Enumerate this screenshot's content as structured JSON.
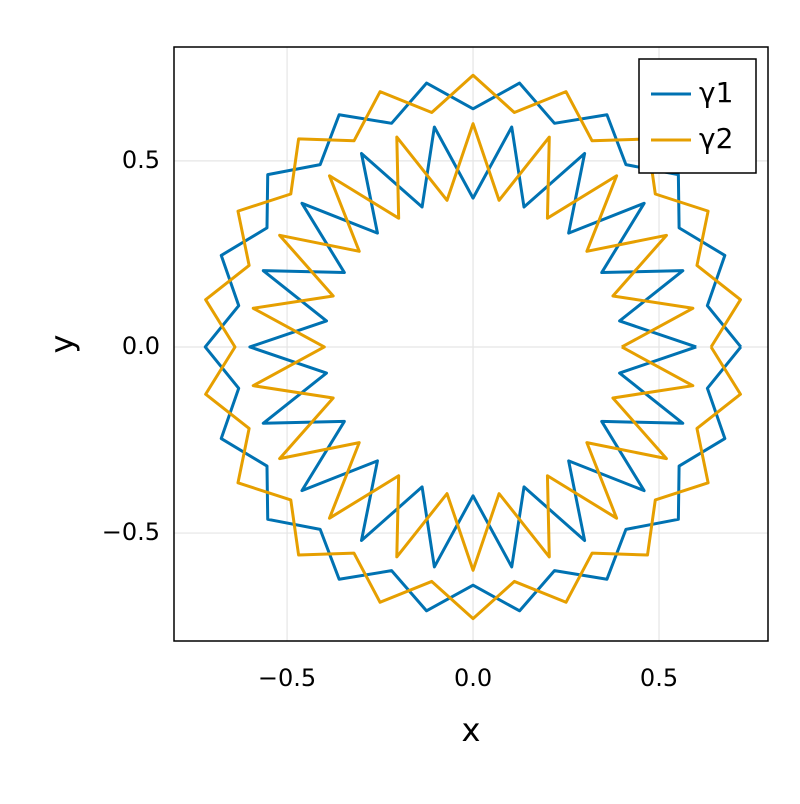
{
  "chart_data": {
    "type": "line",
    "x_label": "x",
    "y_label": "y",
    "xlim": [
      -0.804,
      0.793
    ],
    "ylim": [
      -0.79,
      0.806
    ],
    "xticks": [
      {
        "value": -0.5,
        "label": "−0.5"
      },
      {
        "value": 0,
        "label": "0.0"
      },
      0.5
    ],
    "yticks": [
      {
        "value": -0.5,
        "label": "−0.5"
      },
      {
        "value": 0,
        "label": "0.0"
      },
      0.5
    ],
    "grid": true,
    "legend": "top-right",
    "series": [
      {
        "name": "γ1",
        "color": "#0072b2",
        "x": [
          0.72,
          0.63,
          0.677,
          0.554,
          0.552,
          0.411,
          0.36,
          0.219,
          0.125,
          0,
          -0.125,
          -0.219,
          -0.36,
          -0.411,
          -0.552,
          -0.554,
          -0.677,
          -0.63,
          -0.72,
          -0.63,
          -0.677,
          -0.554,
          -0.552,
          -0.411,
          -0.36,
          -0.219,
          -0.125,
          0,
          0.125,
          0.219,
          0.36,
          0.411,
          0.552,
          0.554,
          0.677,
          0.63,
          0.72,
          null,
          0.6,
          0.394,
          0.564,
          0.346,
          0.46,
          0.257,
          0.3,
          0.137,
          0.104,
          0,
          -0.104,
          -0.137,
          -0.3,
          -0.257,
          -0.46,
          -0.346,
          -0.564,
          -0.394,
          -0.6,
          -0.394,
          -0.564,
          -0.346,
          -0.46,
          -0.257,
          -0.3,
          -0.137,
          -0.104,
          0,
          0.104,
          0.137,
          0.3,
          0.257,
          0.46,
          0.346,
          0.564,
          0.394,
          0.6
        ],
        "y": [
          0,
          0.111,
          0.246,
          0.32,
          0.463,
          0.49,
          0.624,
          0.601,
          0.709,
          0.64,
          0.709,
          0.601,
          0.624,
          0.49,
          0.463,
          0.32,
          0.246,
          0.111,
          0,
          -0.111,
          -0.246,
          -0.32,
          -0.463,
          -0.49,
          -0.624,
          -0.601,
          -0.709,
          -0.64,
          -0.709,
          -0.601,
          -0.624,
          -0.49,
          -0.463,
          -0.32,
          -0.246,
          -0.111,
          0,
          null,
          0,
          0.07,
          0.205,
          0.2,
          0.386,
          0.306,
          0.52,
          0.376,
          0.591,
          0.4,
          0.591,
          0.376,
          0.52,
          0.306,
          0.386,
          0.2,
          0.205,
          0.07,
          0,
          -0.07,
          -0.205,
          -0.2,
          -0.386,
          -0.306,
          -0.52,
          -0.376,
          -0.591,
          -0.4,
          -0.591,
          -0.376,
          -0.52,
          -0.306,
          -0.386,
          -0.2,
          -0.205,
          -0.07,
          0
        ]
      },
      {
        "name": "γ2",
        "color": "#e69f00",
        "x": [
          0.64,
          0.719,
          0.602,
          0.632,
          0.49,
          0.469,
          0.32,
          0.25,
          0.111,
          0,
          -0.111,
          -0.25,
          -0.32,
          -0.469,
          -0.49,
          -0.632,
          -0.602,
          -0.719,
          -0.64,
          -0.719,
          -0.602,
          -0.632,
          -0.49,
          -0.469,
          -0.32,
          -0.25,
          -0.111,
          0,
          0.111,
          0.25,
          0.32,
          0.469,
          0.49,
          0.632,
          0.602,
          0.719,
          0.64,
          null,
          0.4,
          0.591,
          0.376,
          0.52,
          0.306,
          0.386,
          0.2,
          0.205,
          0.07,
          0,
          -0.07,
          -0.205,
          -0.2,
          -0.386,
          -0.306,
          -0.52,
          -0.376,
          -0.591,
          -0.4,
          -0.591,
          -0.376,
          -0.52,
          -0.306,
          -0.386,
          -0.2,
          -0.205,
          -0.07,
          0,
          0.07,
          0.205,
          0.2,
          0.386,
          0.306,
          0.52,
          0.376,
          0.591,
          0.4
        ],
        "y": [
          0,
          0.127,
          0.219,
          0.365,
          0.411,
          0.559,
          0.554,
          0.686,
          0.63,
          0.73,
          0.63,
          0.686,
          0.554,
          0.559,
          0.411,
          0.365,
          0.219,
          0.127,
          0,
          -0.127,
          -0.219,
          -0.365,
          -0.411,
          -0.559,
          -0.554,
          -0.686,
          -0.63,
          -0.73,
          -0.63,
          -0.686,
          -0.554,
          -0.559,
          -0.411,
          -0.365,
          -0.219,
          -0.127,
          0,
          null,
          0,
          0.104,
          0.137,
          0.3,
          0.257,
          0.46,
          0.346,
          0.564,
          0.394,
          0.6,
          0.394,
          0.564,
          0.346,
          0.46,
          0.257,
          0.3,
          0.137,
          0.104,
          0,
          -0.104,
          -0.137,
          -0.3,
          -0.257,
          -0.46,
          -0.346,
          -0.564,
          -0.394,
          -0.6,
          -0.394,
          -0.564,
          -0.346,
          -0.46,
          -0.257,
          -0.3,
          -0.137,
          -0.104,
          0
        ]
      }
    ]
  }
}
